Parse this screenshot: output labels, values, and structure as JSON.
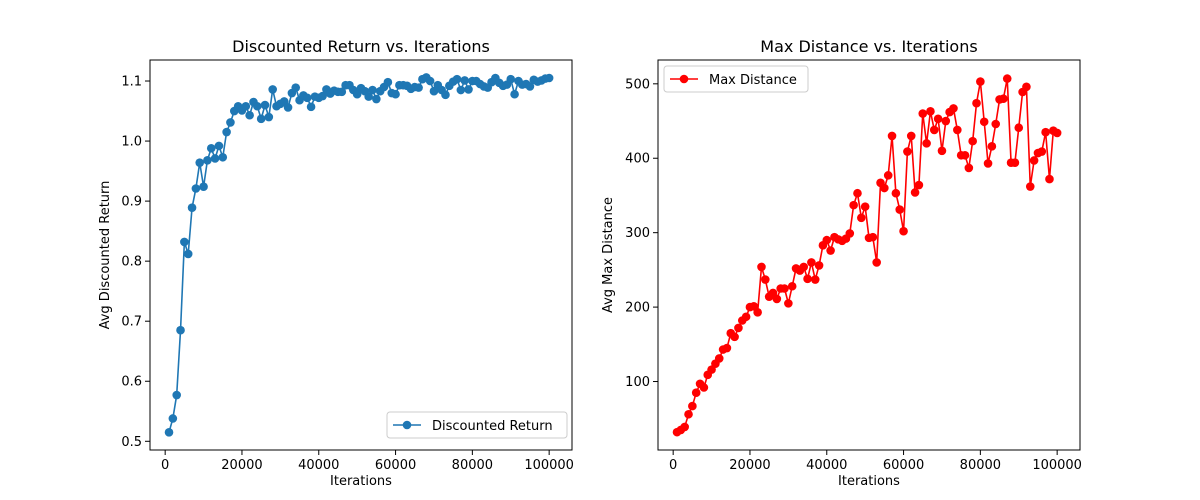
{
  "chart_data": [
    {
      "type": "line",
      "title": "Discounted Return vs. Iterations",
      "xlabel": "Iterations",
      "ylabel": "Avg Discounted Return",
      "xlim": [
        -3950,
        105950
      ],
      "ylim": [
        0.4855,
        1.135
      ],
      "xticks": [
        0,
        20000,
        40000,
        60000,
        80000,
        100000
      ],
      "xtick_labels": [
        "0",
        "20000",
        "40000",
        "60000",
        "80000",
        "100000"
      ],
      "yticks": [
        0.5,
        0.6,
        0.7,
        0.8,
        0.9,
        1.0,
        1.1
      ],
      "ytick_labels": [
        "0.5",
        "0.6",
        "0.7",
        "0.8",
        "0.9",
        "1.0",
        "1.1"
      ],
      "grid": false,
      "legend_position": "lower right",
      "series": [
        {
          "name": "Discounted Return",
          "color": "#1f77b4",
          "marker": "circle",
          "x": [
            1000,
            2000,
            3000,
            4000,
            5000,
            6000,
            7000,
            8000,
            9000,
            10000,
            11000,
            12000,
            13000,
            14000,
            15000,
            16000,
            17000,
            18000,
            19000,
            20000,
            21000,
            22000,
            23000,
            24000,
            25000,
            26000,
            27000,
            28000,
            29000,
            30000,
            31000,
            32000,
            33000,
            34000,
            35000,
            36000,
            37000,
            38000,
            39000,
            40000,
            41000,
            42000,
            43000,
            44000,
            45000,
            46000,
            47000,
            48000,
            49000,
            50000,
            51000,
            52000,
            53000,
            54000,
            55000,
            56000,
            57000,
            58000,
            59000,
            60000,
            61000,
            62000,
            63000,
            64000,
            65000,
            66000,
            67000,
            68000,
            69000,
            70000,
            71000,
            72000,
            73000,
            74000,
            75000,
            76000,
            77000,
            78000,
            79000,
            80000,
            81000,
            82000,
            83000,
            84000,
            85000,
            86000,
            87000,
            88000,
            89000,
            90000,
            91000,
            92000,
            93000,
            94000,
            95000,
            96000,
            97000,
            98000,
            99000,
            100000
          ],
          "y": [
            0.515,
            0.538,
            0.577,
            0.685,
            0.832,
            0.812,
            0.889,
            0.921,
            0.964,
            0.924,
            0.968,
            0.988,
            0.971,
            0.992,
            0.973,
            1.015,
            1.031,
            1.05,
            1.058,
            1.051,
            1.058,
            1.043,
            1.065,
            1.058,
            1.037,
            1.06,
            1.04,
            1.086,
            1.058,
            1.062,
            1.066,
            1.056,
            1.08,
            1.089,
            1.068,
            1.076,
            1.072,
            1.057,
            1.074,
            1.072,
            1.075,
            1.086,
            1.079,
            1.084,
            1.082,
            1.082,
            1.093,
            1.093,
            1.085,
            1.078,
            1.088,
            1.083,
            1.074,
            1.085,
            1.07,
            1.083,
            1.09,
            1.098,
            1.08,
            1.078,
            1.093,
            1.093,
            1.092,
            1.087,
            1.09,
            1.089,
            1.103,
            1.106,
            1.1,
            1.083,
            1.093,
            1.085,
            1.077,
            1.092,
            1.099,
            1.103,
            1.085,
            1.101,
            1.086,
            1.1,
            1.1,
            1.095,
            1.091,
            1.089,
            1.098,
            1.105,
            1.097,
            1.092,
            1.094,
            1.103,
            1.078,
            1.1,
            1.094,
            1.095,
            1.091,
            1.102,
            1.099,
            1.101,
            1.104,
            1.105
          ]
        }
      ]
    },
    {
      "type": "line",
      "title": "Max Distance vs. Iterations",
      "xlabel": "Iterations",
      "ylabel": "Avg Max Distance",
      "xlim": [
        -3950,
        105950
      ],
      "ylim": [
        8,
        532
      ],
      "xticks": [
        0,
        20000,
        40000,
        60000,
        80000,
        100000
      ],
      "xtick_labels": [
        "0",
        "20000",
        "40000",
        "60000",
        "80000",
        "100000"
      ],
      "yticks": [
        100,
        200,
        300,
        400,
        500
      ],
      "ytick_labels": [
        "100",
        "200",
        "300",
        "400",
        "500"
      ],
      "grid": false,
      "legend_position": "upper left",
      "series": [
        {
          "name": "Max Distance",
          "color": "#ff0000",
          "marker": "circle",
          "x": [
            1000,
            2000,
            3000,
            4000,
            5000,
            6000,
            7000,
            8000,
            9000,
            10000,
            11000,
            12000,
            13000,
            14000,
            15000,
            16000,
            17000,
            18000,
            19000,
            20000,
            21000,
            22000,
            23000,
            24000,
            25000,
            26000,
            27000,
            28000,
            29000,
            30000,
            31000,
            32000,
            33000,
            34000,
            35000,
            36000,
            37000,
            38000,
            39000,
            40000,
            41000,
            42000,
            43000,
            44000,
            45000,
            46000,
            47000,
            48000,
            49000,
            50000,
            51000,
            52000,
            53000,
            54000,
            55000,
            56000,
            57000,
            58000,
            59000,
            60000,
            61000,
            62000,
            63000,
            64000,
            65000,
            66000,
            67000,
            68000,
            69000,
            70000,
            71000,
            72000,
            73000,
            74000,
            75000,
            76000,
            77000,
            78000,
            79000,
            80000,
            81000,
            82000,
            83000,
            84000,
            85000,
            86000,
            87000,
            88000,
            89000,
            90000,
            91000,
            92000,
            93000,
            94000,
            95000,
            96000,
            97000,
            98000,
            99000,
            100000
          ],
          "y": [
            32,
            35,
            39,
            56,
            67,
            85,
            97,
            92,
            109,
            116,
            124,
            131,
            143,
            145,
            165,
            160,
            172,
            182,
            187,
            200,
            201,
            193,
            254,
            237,
            214,
            219,
            211,
            225,
            225,
            205,
            228,
            252,
            249,
            254,
            238,
            260,
            237,
            256,
            283,
            290,
            276,
            294,
            291,
            289,
            292,
            299,
            337,
            353,
            320,
            335,
            293,
            294,
            260,
            367,
            360,
            377,
            430,
            353,
            331,
            302,
            409,
            430,
            354,
            364,
            460,
            420,
            463,
            438,
            453,
            410,
            450,
            462,
            467,
            438,
            404,
            404,
            387,
            423,
            474,
            503,
            449,
            393,
            416,
            446,
            479,
            480,
            507,
            394,
            394,
            441,
            489,
            496,
            362,
            397,
            407,
            409,
            435,
            372,
            437,
            434
          ]
        }
      ]
    }
  ]
}
